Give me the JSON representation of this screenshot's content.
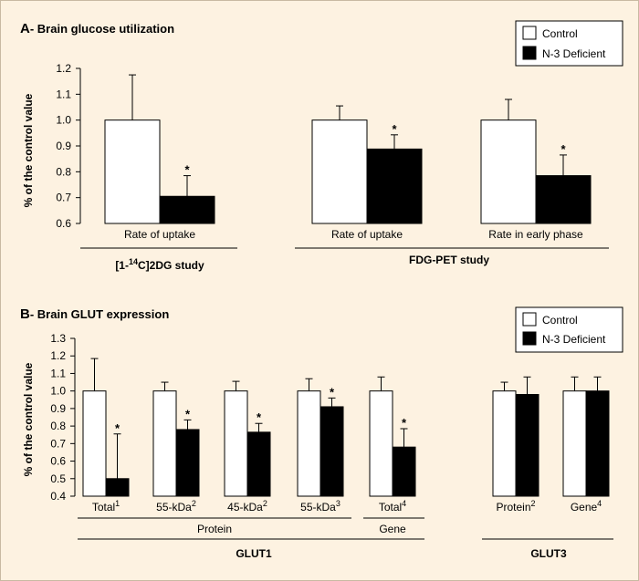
{
  "chart_data": [
    {
      "type": "bar",
      "title_letter": "A",
      "title": "- Brain glucose utilization",
      "ylabel": "% of the control value",
      "ylim": [
        0.6,
        1.2
      ],
      "yticks": [
        "0.6",
        "0.7",
        "0.8",
        "0.9",
        "1.0",
        "1.1",
        "1.2"
      ],
      "legend": [
        {
          "label": "Control",
          "color": "#ffffff"
        },
        {
          "label": "N-3 Deficient",
          "color": "#000000"
        }
      ],
      "legend_position": "top-right",
      "groups": [
        {
          "category": "Rate of uptake",
          "study": "[1-14C]2DG study",
          "control": 1.0,
          "control_err": 0.175,
          "deficient": 0.705,
          "deficient_err": 0.08,
          "significant": true
        },
        {
          "category": "Rate of uptake",
          "study": "FDG-PET study",
          "control": 1.0,
          "control_err": 0.055,
          "deficient": 0.888,
          "deficient_err": 0.055,
          "significant": true
        },
        {
          "category": "Rate in early phase",
          "study": "FDG-PET study",
          "control": 1.0,
          "control_err": 0.08,
          "deficient": 0.785,
          "deficient_err": 0.08,
          "significant": true
        }
      ],
      "study_labels": {
        "s1_pre": "[1-",
        "s1_sup": "14",
        "s1_post": "C]2DG study",
        "s2": "FDG-PET study"
      }
    },
    {
      "type": "bar",
      "title_letter": "B",
      "title": "- Brain GLUT expression",
      "ylabel": "% of the control value",
      "ylim": [
        0.4,
        1.2
      ],
      "yticks": [
        "0.4",
        "0.5",
        "0.6",
        "0.7",
        "0.8",
        "0.9",
        "1.0",
        "1.1",
        "1.2",
        "1.3"
      ],
      "legend": [
        {
          "label": "Control",
          "color": "#ffffff"
        },
        {
          "label": "N-3 Deficient",
          "color": "#000000"
        }
      ],
      "legend_position": "top-right",
      "groups": [
        {
          "category": "Total",
          "sup": "1",
          "control": 1.0,
          "control_err": 0.185,
          "deficient": 0.5,
          "deficient_err": 0.255,
          "significant": true
        },
        {
          "category": "55-kDa",
          "sup": "2",
          "control": 1.0,
          "control_err": 0.05,
          "deficient": 0.78,
          "deficient_err": 0.055,
          "significant": true
        },
        {
          "category": "45-kDa",
          "sup": "2",
          "control": 1.0,
          "control_err": 0.055,
          "deficient": 0.765,
          "deficient_err": 0.05,
          "significant": true
        },
        {
          "category": "55-kDa",
          "sup": "3",
          "control": 1.0,
          "control_err": 0.07,
          "deficient": 0.91,
          "deficient_err": 0.05,
          "significant": true
        },
        {
          "category": "Total",
          "sup": "4",
          "control": 1.0,
          "control_err": 0.08,
          "deficient": 0.68,
          "deficient_err": 0.105,
          "significant": true
        },
        {
          "category": "Protein",
          "sup": "2",
          "control": 1.0,
          "control_err": 0.05,
          "deficient": 0.98,
          "deficient_err": 0.1,
          "significant": false
        },
        {
          "category": "Gene",
          "sup": "4",
          "control": 1.0,
          "control_err": 0.08,
          "deficient": 1.0,
          "deficient_err": 0.08,
          "significant": false
        }
      ],
      "sub_labels": {
        "protein": "Protein",
        "gene": "Gene"
      },
      "group_labels": {
        "glut1": "GLUT1",
        "glut3": "GLUT3"
      }
    }
  ],
  "significance_marker": "*"
}
